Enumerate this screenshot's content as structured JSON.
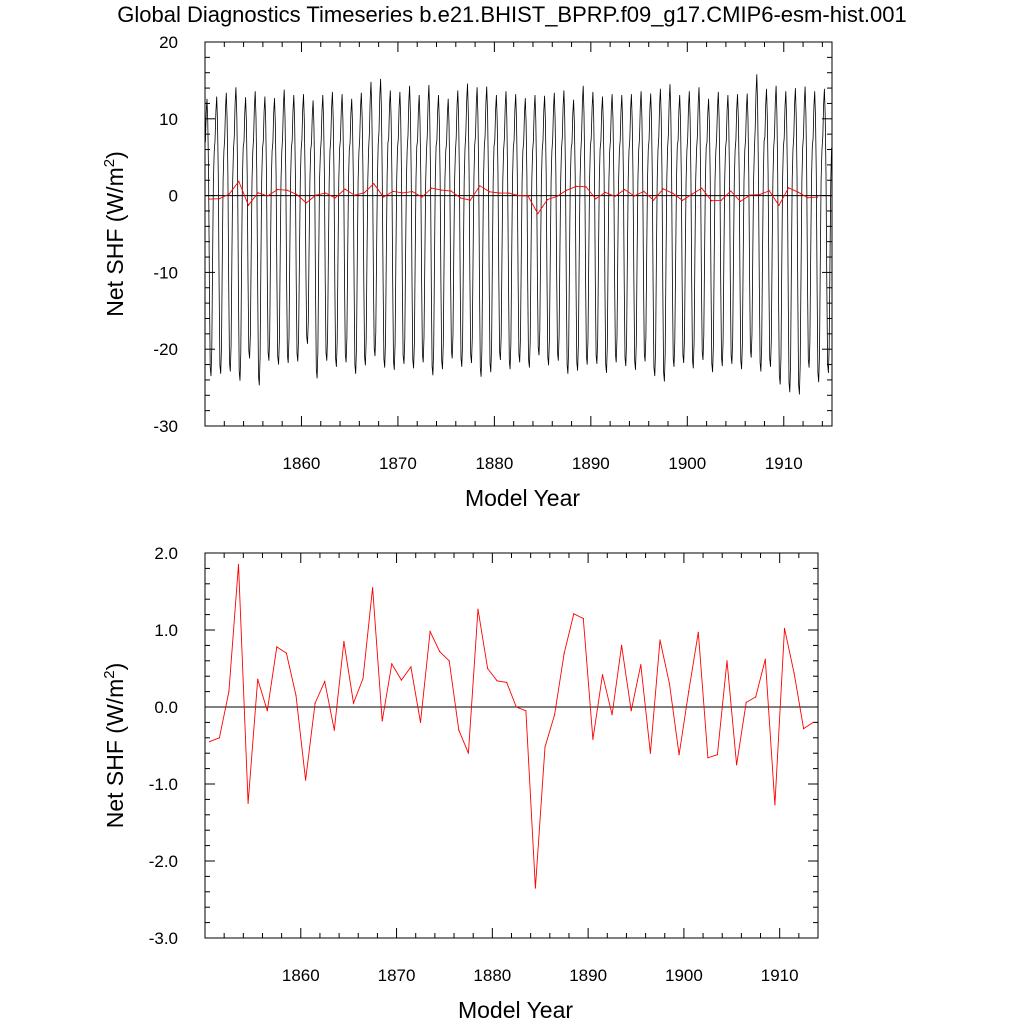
{
  "title": "Global Diagnostics Timeseries b.e21.BHIST_BPRP.f09_g17.CMIP6-esm-hist.001",
  "colors": {
    "monthly": "#000000",
    "annual": "#ff0000",
    "axis": "#000000"
  },
  "chart_data": [
    {
      "type": "line",
      "xlabel": "Model Year",
      "ylabel": "Net SHF (W/m2)",
      "xlim": [
        1850,
        1915
      ],
      "ylim": [
        -30,
        20
      ],
      "xticks": [
        1860,
        1870,
        1880,
        1890,
        1900,
        1910
      ],
      "yticks": [
        20,
        10,
        0,
        -10,
        -20,
        -30
      ],
      "ytick_labels": [
        "20",
        "10",
        "0",
        "-10",
        "-20",
        "-30"
      ],
      "zero_line": true,
      "series": [
        {
          "role": "monthly",
          "color": "#000000",
          "start_year": 1850,
          "values_per_year": 12,
          "annual_max": [
            12.6,
            12.9,
            13.4,
            14.1,
            12.8,
            13.6,
            12.9,
            12.7,
            13.8,
            13.1,
            13.2,
            12.4,
            13.1,
            13.5,
            13.2,
            12.6,
            13.4,
            14.8,
            15.2,
            13.7,
            13.5,
            14.3,
            13.1,
            14.4,
            13.1,
            12.6,
            13.7,
            14.6,
            14.1,
            14.2,
            13.1,
            13.6,
            13.2,
            12.7,
            13.1,
            13.0,
            13.4,
            13.7,
            12.5,
            14.3,
            13.5,
            12.9,
            13.2,
            13.1,
            13.2,
            13.6,
            13.3,
            13.9,
            14.5,
            13.1,
            13.6,
            14.1,
            12.6,
            13.5,
            13.1,
            13.2,
            13.3,
            15.8,
            13.9,
            14.3,
            13.6,
            14.0,
            14.2,
            13.6,
            13.9
          ],
          "annual_min": [
            -23.5,
            -23.2,
            -22.9,
            -24.1,
            -21.2,
            -24.7,
            -21.5,
            -22.0,
            -21.8,
            -21.6,
            -19.3,
            -23.8,
            -21.5,
            -22.3,
            -21.7,
            -23.2,
            -22.1,
            -20.9,
            -22.4,
            -22.7,
            -21.9,
            -22.5,
            -21.7,
            -23.4,
            -22.6,
            -21.2,
            -22.3,
            -21.8,
            -23.6,
            -23.0,
            -21.4,
            -22.6,
            -21.7,
            -22.4,
            -20.8,
            -22.1,
            -21.5,
            -23.2,
            -22.8,
            -22.0,
            -21.9,
            -23.1,
            -21.7,
            -22.2,
            -22.7,
            -21.6,
            -23.5,
            -24.2,
            -22.3,
            -21.8,
            -22.5,
            -21.4,
            -23.0,
            -22.2,
            -21.9,
            -22.6,
            -21.1,
            -22.9,
            -22.3,
            -24.6,
            -25.6,
            -25.9,
            -22.4,
            -24.3,
            -23.1
          ]
        },
        {
          "role": "annual",
          "color": "#ff0000",
          "x": [
            1850.5,
            1851.5,
            1852.5,
            1853.5,
            1854.5,
            1855.5,
            1856.5,
            1857.5,
            1858.5,
            1859.5,
            1860.5,
            1861.5,
            1862.5,
            1863.5,
            1864.5,
            1865.5,
            1866.5,
            1867.5,
            1868.5,
            1869.5,
            1870.5,
            1871.5,
            1872.5,
            1873.5,
            1874.5,
            1875.5,
            1876.5,
            1877.5,
            1878.5,
            1879.5,
            1880.5,
            1881.5,
            1882.5,
            1883.5,
            1884.5,
            1885.5,
            1886.5,
            1887.5,
            1888.5,
            1889.5,
            1890.5,
            1891.5,
            1892.5,
            1893.5,
            1894.5,
            1895.5,
            1896.5,
            1897.5,
            1898.5,
            1899.5,
            1900.5,
            1901.5,
            1902.5,
            1903.5,
            1904.5,
            1905.5,
            1906.5,
            1907.5,
            1908.5,
            1909.5,
            1910.5,
            1911.5,
            1912.5,
            1913.5
          ],
          "values": [
            -0.45,
            -0.4,
            0.2,
            1.85,
            -1.25,
            0.36,
            -0.05,
            0.78,
            0.7,
            0.15,
            -0.95,
            0.05,
            0.33,
            -0.3,
            0.85,
            0.05,
            0.37,
            1.55,
            -0.18,
            0.56,
            0.35,
            0.52,
            -0.2,
            0.98,
            0.72,
            0.6,
            -0.3,
            -0.6,
            1.27,
            0.5,
            0.34,
            0.32,
            0.0,
            -0.05,
            -2.35,
            -0.52,
            -0.1,
            0.7,
            1.21,
            1.15,
            -0.42,
            0.42,
            -0.1,
            0.8,
            -0.05,
            0.55,
            -0.6,
            0.87,
            0.3,
            -0.62,
            0.2,
            0.97,
            -0.66,
            -0.62,
            0.6,
            -0.75,
            0.06,
            0.13,
            0.62,
            -1.27,
            1.02,
            0.44,
            -0.28,
            -0.2
          ]
        }
      ]
    },
    {
      "type": "line",
      "xlabel": "Model Year",
      "ylabel": "Net SHF (W/m2)",
      "xlim": [
        1850,
        1914
      ],
      "ylim": [
        -3,
        2
      ],
      "xticks": [
        1860,
        1870,
        1880,
        1890,
        1900,
        1910
      ],
      "yticks": [
        2,
        1,
        0,
        -1,
        -2,
        -3
      ],
      "ytick_labels": [
        "2.0",
        "1.0",
        "0.0",
        "-1.0",
        "-2.0",
        "-3.0"
      ],
      "zero_line": true,
      "series": [
        {
          "role": "annual",
          "color": "#ff0000",
          "x": [
            1850.5,
            1851.5,
            1852.5,
            1853.5,
            1854.5,
            1855.5,
            1856.5,
            1857.5,
            1858.5,
            1859.5,
            1860.5,
            1861.5,
            1862.5,
            1863.5,
            1864.5,
            1865.5,
            1866.5,
            1867.5,
            1868.5,
            1869.5,
            1870.5,
            1871.5,
            1872.5,
            1873.5,
            1874.5,
            1875.5,
            1876.5,
            1877.5,
            1878.5,
            1879.5,
            1880.5,
            1881.5,
            1882.5,
            1883.5,
            1884.5,
            1885.5,
            1886.5,
            1887.5,
            1888.5,
            1889.5,
            1890.5,
            1891.5,
            1892.5,
            1893.5,
            1894.5,
            1895.5,
            1896.5,
            1897.5,
            1898.5,
            1899.5,
            1900.5,
            1901.5,
            1902.5,
            1903.5,
            1904.5,
            1905.5,
            1906.5,
            1907.5,
            1908.5,
            1909.5,
            1910.5,
            1911.5,
            1912.5,
            1913.5
          ],
          "values": [
            -0.45,
            -0.4,
            0.2,
            1.85,
            -1.25,
            0.36,
            -0.05,
            0.78,
            0.7,
            0.15,
            -0.95,
            0.05,
            0.33,
            -0.3,
            0.85,
            0.05,
            0.37,
            1.55,
            -0.18,
            0.56,
            0.35,
            0.52,
            -0.2,
            0.98,
            0.72,
            0.6,
            -0.3,
            -0.6,
            1.27,
            0.5,
            0.34,
            0.32,
            0.0,
            -0.05,
            -2.35,
            -0.52,
            -0.1,
            0.7,
            1.21,
            1.15,
            -0.42,
            0.42,
            -0.1,
            0.8,
            -0.05,
            0.55,
            -0.6,
            0.87,
            0.3,
            -0.62,
            0.2,
            0.97,
            -0.66,
            -0.62,
            0.6,
            -0.75,
            0.06,
            0.13,
            0.62,
            -1.27,
            1.02,
            0.44,
            -0.28,
            -0.2
          ]
        }
      ]
    }
  ]
}
